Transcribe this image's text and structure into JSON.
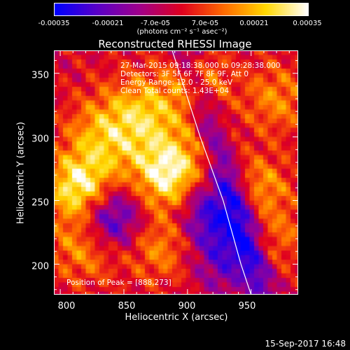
{
  "colorbar": {
    "ticks": [
      "-0.00035",
      "-0.00021",
      "-7.0e-05",
      "7.0e-05",
      "0.00021",
      "0.00035"
    ],
    "tick_values": [
      -0.00035,
      -0.00021,
      -7e-05,
      7e-05,
      0.00021,
      0.00035
    ],
    "range": [
      -0.00035,
      0.00035
    ],
    "units": "(photons cm⁻² s⁻¹ asec⁻²)",
    "colors": [
      "#0000ff",
      "#5a00c8",
      "#a0008c",
      "#e00020",
      "#ff6a00",
      "#ffd800",
      "#ffffff"
    ]
  },
  "chart_data": {
    "type": "heatmap",
    "title": "Reconstructed RHESSI Image",
    "xlabel": "Heliocentric X (arcsec)",
    "ylabel": "Heliocentric Y (arcsec)",
    "xlim": [
      795,
      987
    ],
    "ylim": [
      176,
      368
    ],
    "xticks": [
      800,
      850,
      900,
      950
    ],
    "yticks": [
      200,
      250,
      300,
      350
    ],
    "info_lines": [
      "27-Mar-2015 09:18:38.000 to 09:28:38.000",
      "Detectors: 3F 5F 6F 7F 8F 9F, Att 0",
      "Energy Range: 12.0 - 25.0 keV",
      "Clean    Total counts: 1.43E+04"
    ],
    "peak_label": "Position of Peak = [888,273]",
    "peak": [
      888,
      273
    ],
    "limb": {
      "description": "solar limb",
      "points": [
        [
          888,
          368
        ],
        [
          910,
          300
        ],
        [
          928,
          250
        ],
        [
          942,
          200
        ],
        [
          950,
          176
        ]
      ]
    },
    "grid": false
  },
  "footer": {
    "datestamp": "15-Sep-2017 16:48"
  }
}
